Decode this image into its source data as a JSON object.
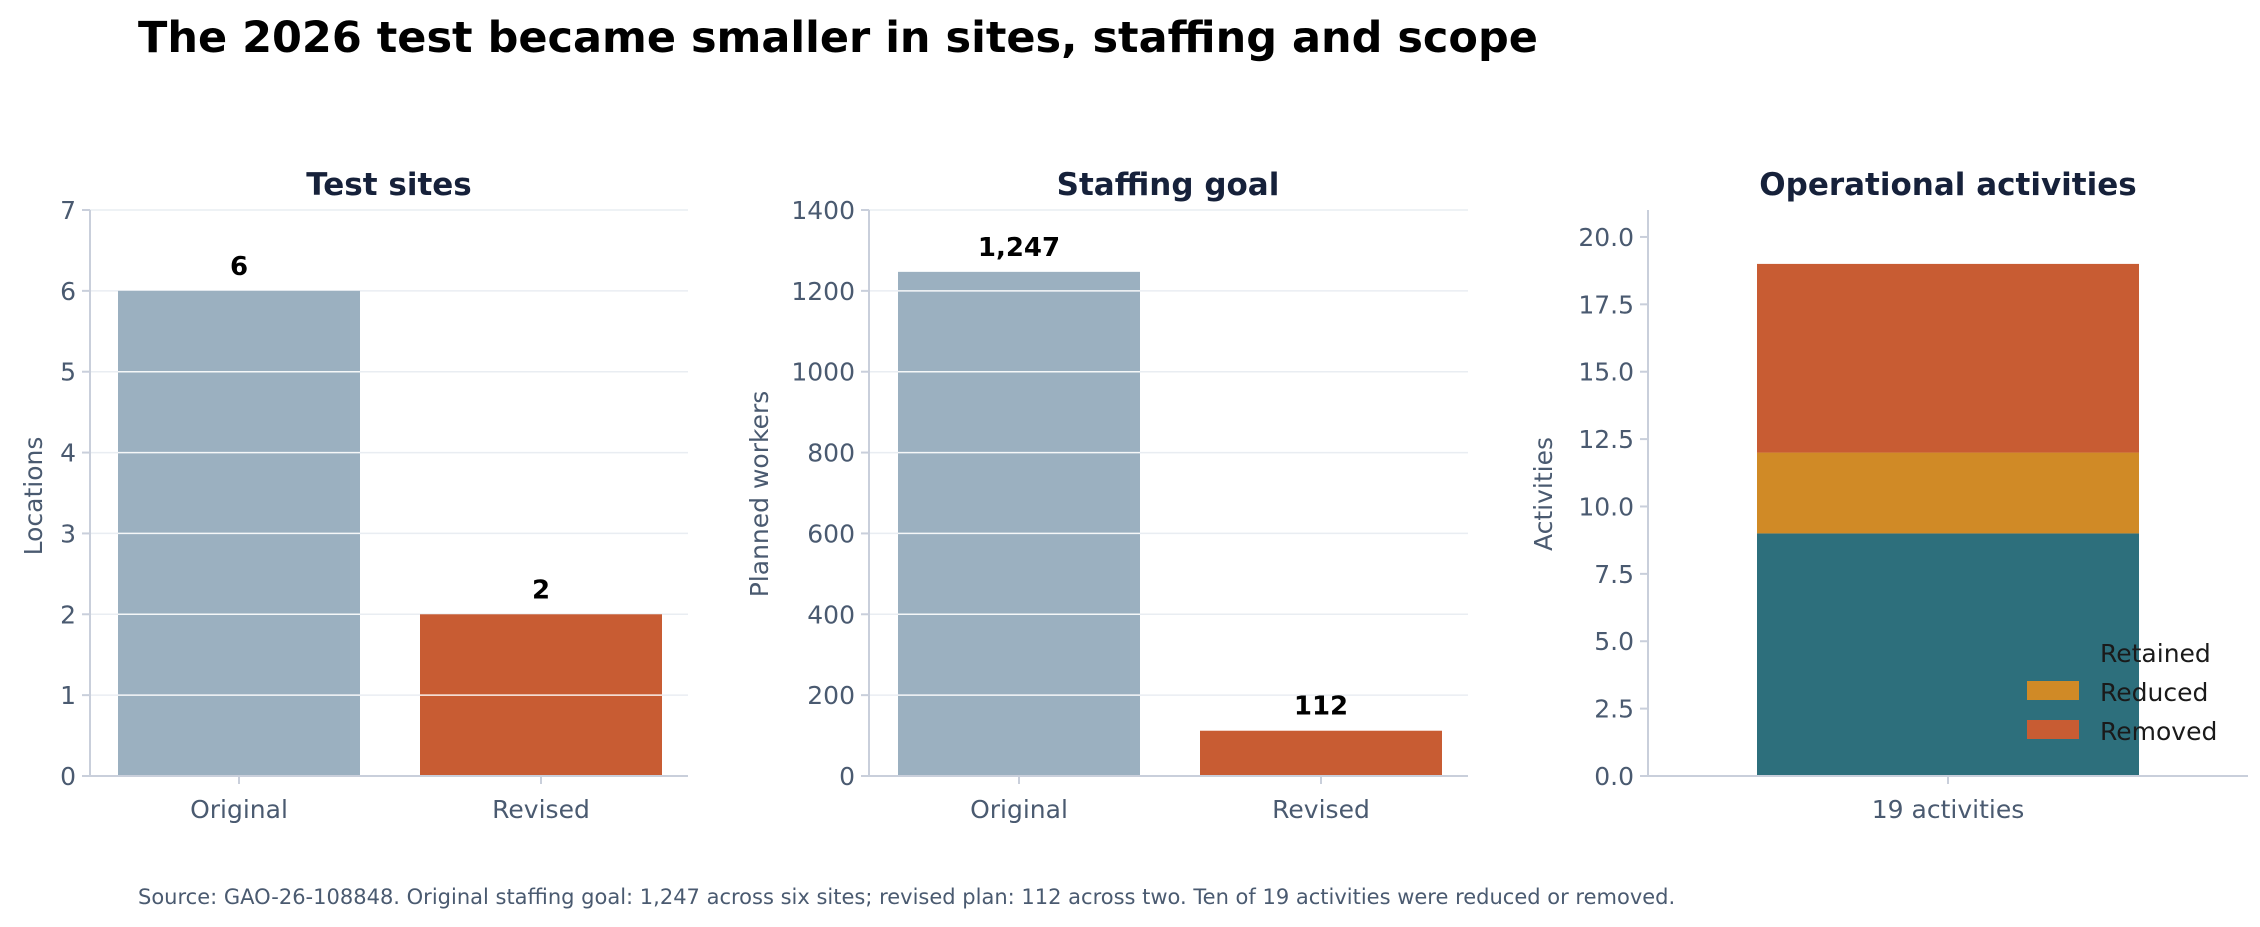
{
  "title": "The 2026 test became smaller in sites, staffing and scope",
  "source": "Source: GAO-26-108848. Original staffing goal: 1,247 across six sites; revised plan: 112 across two. Ten of 19 activities were reduced or removed.",
  "colors": {
    "original": "#9bb0c0",
    "revised": "#c85c33",
    "retained": "#2d6f7c",
    "reduced": "#d08a26",
    "removed": "#c85c33"
  },
  "chart_data": [
    {
      "type": "bar",
      "title": "Test sites",
      "ylabel": "Locations",
      "xlabel": "",
      "categories": [
        "Original",
        "Revised"
      ],
      "values": [
        6,
        2
      ],
      "value_labels": [
        "6",
        "2"
      ],
      "ylim": [
        0,
        7
      ],
      "yticks": [
        "0",
        "1",
        "2",
        "3",
        "4",
        "5",
        "6",
        "7"
      ],
      "grid": true
    },
    {
      "type": "bar",
      "title": "Staffing goal",
      "ylabel": "Planned workers",
      "xlabel": "",
      "categories": [
        "Original",
        "Revised"
      ],
      "values": [
        1247,
        112
      ],
      "value_labels": [
        "1,247",
        "112"
      ],
      "ylim": [
        0,
        1400
      ],
      "yticks": [
        "0",
        "200",
        "400",
        "600",
        "800",
        "1000",
        "1200",
        "1400"
      ],
      "grid": true
    },
    {
      "type": "bar",
      "stacked": true,
      "title": "Operational activities",
      "ylabel": "Activities",
      "xlabel": "",
      "categories": [
        "19 activities"
      ],
      "series": [
        {
          "name": "Retained",
          "values": [
            9
          ]
        },
        {
          "name": "Reduced",
          "values": [
            3
          ]
        },
        {
          "name": "Removed",
          "values": [
            7
          ]
        }
      ],
      "ylim": [
        0,
        21
      ],
      "yticks": [
        "0.0",
        "2.5",
        "5.0",
        "7.5",
        "10.0",
        "12.5",
        "15.0",
        "17.5",
        "20.0"
      ],
      "legend": "lower-right"
    }
  ]
}
